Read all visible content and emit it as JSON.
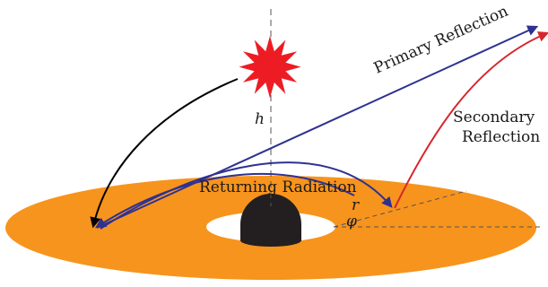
{
  "diagram": {
    "labels": {
      "primary_reflection": "Primary Reflection",
      "secondary_reflection_line1": "Secondary",
      "secondary_reflection_line2": "Reflection",
      "returning_radiation": "Returning Radiation",
      "height_symbol": "h",
      "radius_symbol": "r",
      "angle_symbol": "φ"
    },
    "colors": {
      "disc": "#f7941d",
      "black_hole": "#231f20",
      "source_star": "#ed1c24",
      "primary_reflection_path": "#2e3192",
      "secondary_reflection_path": "#d7262d",
      "direct_path": "#000000",
      "axis_lines": "#555555"
    },
    "icons": {
      "source": "star-burst-icon",
      "black_hole": "black-hole-icon"
    }
  }
}
